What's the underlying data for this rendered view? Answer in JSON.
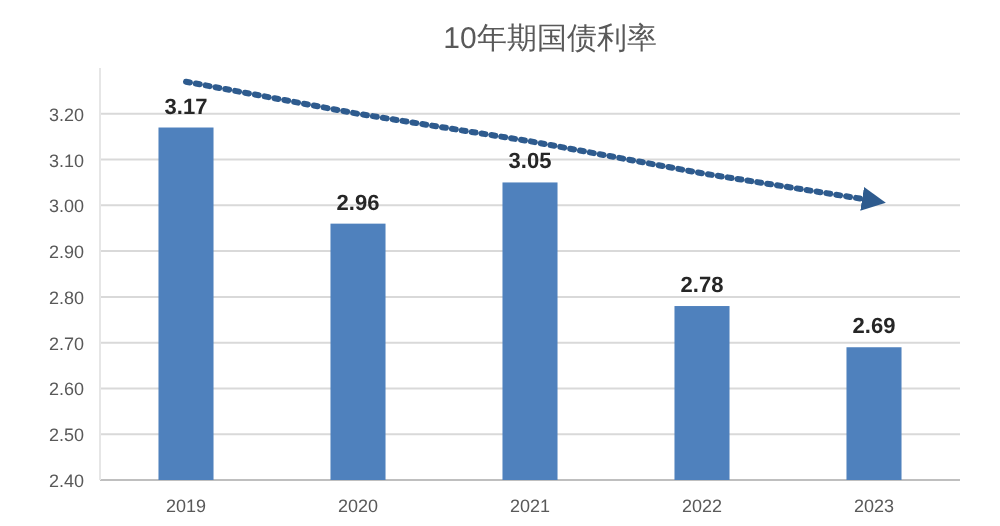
{
  "chart_data": {
    "type": "bar",
    "title": "10年期国债利率",
    "categories": [
      "2019",
      "2020",
      "2021",
      "2022",
      "2023"
    ],
    "series": [
      {
        "color": "#4f81bd",
        "values": [
          3.17,
          2.96,
          3.05,
          2.78,
          2.69
        ],
        "value_labels": [
          "3.17",
          "2.96",
          "3.05",
          "2.78",
          "2.69"
        ]
      },
      {
        "type": "line",
        "color": "#2e5b8e",
        "line_style": "dotted",
        "values": [
          3.27,
          3.2,
          3.14,
          3.07,
          3.01
        ]
      }
    ],
    "ylim": [
      2.4,
      3.3
    ],
    "yticks": [
      {
        "value": 2.4,
        "label": "2.40"
      },
      {
        "value": 2.5,
        "label": "2.50"
      },
      {
        "value": 2.6,
        "label": "2.60"
      },
      {
        "value": 2.7,
        "label": "2.70"
      },
      {
        "value": 2.8,
        "label": "2.80"
      },
      {
        "value": 2.9,
        "label": "2.90"
      },
      {
        "value": 3.0,
        "label": "3.00"
      },
      {
        "value": 3.1,
        "label": "3.10"
      },
      {
        "value": 3.2,
        "label": "3.20"
      }
    ],
    "grid": "y"
  }
}
